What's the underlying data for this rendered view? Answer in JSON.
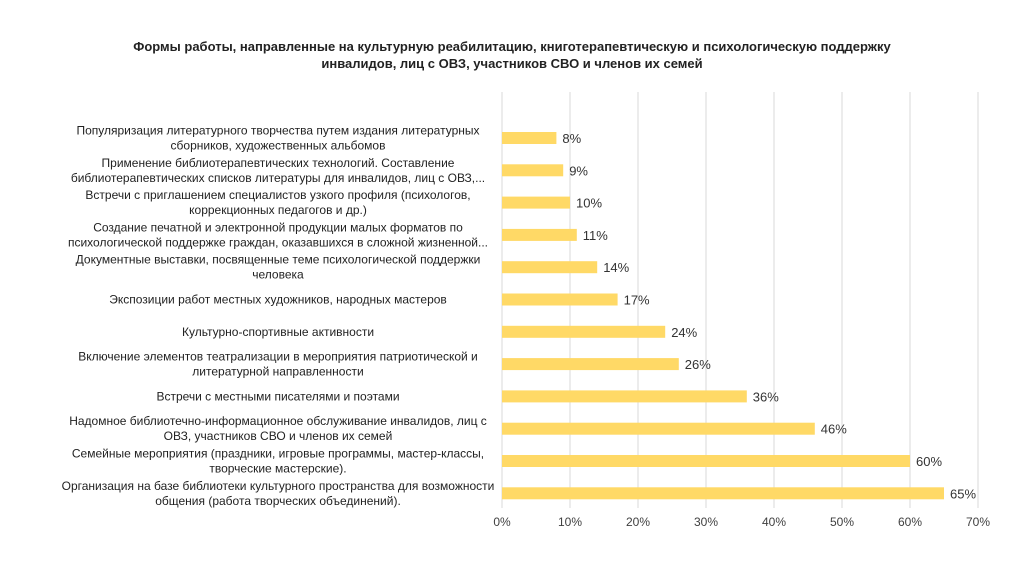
{
  "chart_data": {
    "type": "bar",
    "orientation": "horizontal",
    "title_lines": [
      "Формы работы, направленные на культурную реабилитацию, книготерапевтическую и психологическую поддержку",
      "инвалидов, лиц с ОВЗ, участников СВО и членов их семей"
    ],
    "categories": [
      [
        "Популяризация литературного творчества путем издания литературных",
        "сборников, художественных альбомов"
      ],
      [
        "Применение библиотерапевтических технологий. Составление",
        "библиотерапевтических списков литературы для инвалидов, лиц с ОВЗ,..."
      ],
      [
        "Встречи с приглашением специалистов узкого профиля (психологов,",
        "коррекционных педагогов и др.)"
      ],
      [
        "Создание печатной и электронной продукции малых форматов по",
        "психологической поддержке граждан, оказавшихся в сложной жизненной..."
      ],
      [
        "Документные выставки, посвященные теме психологической поддержки",
        "человека"
      ],
      [
        "Экспозиции работ местных художников, народных мастеров"
      ],
      [
        "Культурно-спортивные активности"
      ],
      [
        "Включение элементов театрализации в мероприятия патриотической и",
        "литературной направленности"
      ],
      [
        "Встречи с местными писателями и поэтами"
      ],
      [
        "Надомное библиотечно-информационное обслуживание инвалидов, лиц с",
        "ОВЗ, участников СВО и членов их семей"
      ],
      [
        "Семейные мероприятия (праздники, игровые программы, мастер-классы,",
        "творческие мастерские)."
      ],
      [
        "Организация на базе библиотеки культурного пространства для возможности",
        "общения (работа творческих объединений)."
      ]
    ],
    "values": [
      8,
      9,
      10,
      11,
      14,
      17,
      24,
      26,
      36,
      46,
      60,
      65
    ],
    "data_labels": [
      "8%",
      "9%",
      "10%",
      "11%",
      "14%",
      "17%",
      "24%",
      "26%",
      "36%",
      "46%",
      "60%",
      "65%"
    ],
    "x_ticks": [
      "0%",
      "10%",
      "20%",
      "30%",
      "40%",
      "50%",
      "60%",
      "70%"
    ],
    "xlim": [
      0,
      70
    ],
    "grid": true,
    "legend": "none",
    "bar_color": "#FFD966",
    "grid_color": "#D9D9D9"
  }
}
